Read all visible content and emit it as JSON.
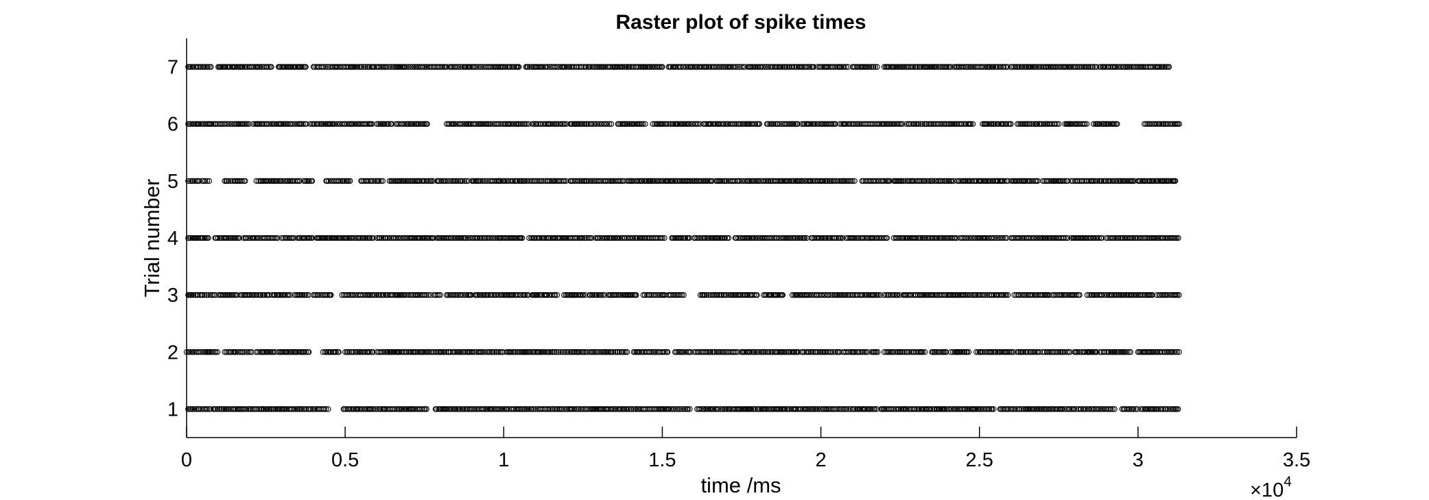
{
  "chart_data": {
    "type": "scatter",
    "title": "Raster plot of spike times",
    "xlabel": "time /ms",
    "ylabel": "Trial number",
    "xlim": [
      0,
      35000
    ],
    "ylim": [
      0.5,
      7.5
    ],
    "x_exponent_label": {
      "base": "×10",
      "exponent": "4"
    },
    "x_ticks": [
      {
        "value": 0,
        "label": "0"
      },
      {
        "value": 5000,
        "label": "0.5"
      },
      {
        "value": 10000,
        "label": "1"
      },
      {
        "value": 15000,
        "label": "1.5"
      },
      {
        "value": 20000,
        "label": "2"
      },
      {
        "value": 25000,
        "label": "2.5"
      },
      {
        "value": 30000,
        "label": "3"
      },
      {
        "value": 35000,
        "label": "3.5"
      }
    ],
    "y_ticks": [
      {
        "value": 1,
        "label": "1"
      },
      {
        "value": 2,
        "label": "2"
      },
      {
        "value": 3,
        "label": "3"
      },
      {
        "value": 4,
        "label": "4"
      },
      {
        "value": 5,
        "label": "5"
      },
      {
        "value": 6,
        "label": "6"
      },
      {
        "value": 7,
        "label": "7"
      }
    ],
    "marker": "open-circle",
    "marker_color": "#000000",
    "grid": false,
    "legend": "none",
    "approx_spike_spacing_ms": 45,
    "trials": [
      {
        "trial": 1,
        "bursts_ms": [
          [
            50,
            750
          ],
          [
            850,
            4500
          ],
          [
            4950,
            7600
          ],
          [
            7850,
            15900
          ],
          [
            16100,
            21800
          ],
          [
            21900,
            25500
          ],
          [
            25650,
            29300
          ],
          [
            29500,
            30000
          ],
          [
            30100,
            31300
          ]
        ]
      },
      {
        "trial": 2,
        "bursts_ms": [
          [
            0,
            1000
          ],
          [
            1200,
            2100
          ],
          [
            2200,
            2800
          ],
          [
            2900,
            3900
          ],
          [
            4300,
            4800
          ],
          [
            5000,
            5900
          ],
          [
            6000,
            10000
          ],
          [
            10100,
            13900
          ],
          [
            14100,
            15200
          ],
          [
            15400,
            15900
          ],
          [
            16000,
            17400
          ],
          [
            17500,
            19300
          ],
          [
            19400,
            20600
          ],
          [
            20700,
            21500
          ],
          [
            21600,
            21800
          ],
          [
            22000,
            23300
          ],
          [
            23500,
            24000
          ],
          [
            24100,
            24700
          ],
          [
            24900,
            26100
          ],
          [
            26200,
            26900
          ],
          [
            27000,
            27900
          ],
          [
            28000,
            28700
          ],
          [
            28800,
            29800
          ],
          [
            30000,
            31300
          ]
        ]
      },
      {
        "trial": 3,
        "bursts_ms": [
          [
            50,
            900
          ],
          [
            1000,
            1600
          ],
          [
            1700,
            2600
          ],
          [
            2700,
            3300
          ],
          [
            3400,
            3900
          ],
          [
            4000,
            4600
          ],
          [
            4900,
            7700
          ],
          [
            7800,
            8000
          ],
          [
            8200,
            9000
          ],
          [
            9100,
            10800
          ],
          [
            10900,
            11700
          ],
          [
            11900,
            12600
          ],
          [
            12700,
            13200
          ],
          [
            13300,
            14200
          ],
          [
            14400,
            15100
          ],
          [
            15200,
            15700
          ],
          [
            16200,
            18000
          ],
          [
            18200,
            18800
          ],
          [
            19100,
            21900
          ],
          [
            22000,
            22500
          ],
          [
            22600,
            25900
          ],
          [
            26100,
            27200
          ],
          [
            27300,
            28200
          ],
          [
            28400,
            30500
          ],
          [
            30600,
            31300
          ]
        ]
      },
      {
        "trial": 4,
        "bursts_ms": [
          [
            50,
            700
          ],
          [
            900,
            1700
          ],
          [
            1800,
            2900
          ],
          [
            3000,
            3400
          ],
          [
            3500,
            4000
          ],
          [
            4100,
            5900
          ],
          [
            6000,
            7800
          ],
          [
            7900,
            10600
          ],
          [
            10800,
            12800
          ],
          [
            12900,
            15100
          ],
          [
            15300,
            15900
          ],
          [
            16000,
            17100
          ],
          [
            17300,
            19600
          ],
          [
            19700,
            20700
          ],
          [
            20800,
            22100
          ],
          [
            22300,
            24300
          ],
          [
            24400,
            25900
          ],
          [
            26000,
            27800
          ],
          [
            27900,
            28900
          ],
          [
            29000,
            31300
          ]
        ]
      },
      {
        "trial": 5,
        "bursts_ms": [
          [
            50,
            400
          ],
          [
            500,
            750
          ],
          [
            1200,
            1900
          ],
          [
            2200,
            3600
          ],
          [
            3700,
            4000
          ],
          [
            4400,
            5200
          ],
          [
            5500,
            6200
          ],
          [
            6400,
            7800
          ],
          [
            7900,
            8900
          ],
          [
            9000,
            12000
          ],
          [
            12100,
            13800
          ],
          [
            13900,
            16600
          ],
          [
            16700,
            21100
          ],
          [
            21300,
            22200
          ],
          [
            22300,
            24200
          ],
          [
            24300,
            25900
          ],
          [
            26000,
            26900
          ],
          [
            27000,
            27800
          ],
          [
            27900,
            29900
          ],
          [
            30000,
            31200
          ]
        ]
      },
      {
        "trial": 6,
        "bursts_ms": [
          [
            50,
            2000
          ],
          [
            2100,
            3800
          ],
          [
            3900,
            5900
          ],
          [
            6000,
            6500
          ],
          [
            6600,
            7600
          ],
          [
            8200,
            10800
          ],
          [
            10900,
            12000
          ],
          [
            12100,
            13400
          ],
          [
            13600,
            14500
          ],
          [
            14700,
            16200
          ],
          [
            16300,
            18100
          ],
          [
            18300,
            19300
          ],
          [
            19400,
            20500
          ],
          [
            20600,
            22600
          ],
          [
            22700,
            24800
          ],
          [
            25100,
            26000
          ],
          [
            26200,
            27500
          ],
          [
            27700,
            28400
          ],
          [
            28600,
            29400
          ],
          [
            30200,
            31300
          ]
        ]
      },
      {
        "trial": 7,
        "bursts_ms": [
          [
            50,
            800
          ],
          [
            1000,
            2700
          ],
          [
            2900,
            3800
          ],
          [
            4000,
            8200
          ],
          [
            8300,
            10500
          ],
          [
            10700,
            15000
          ],
          [
            15200,
            17600
          ],
          [
            17700,
            19800
          ],
          [
            19900,
            20900
          ],
          [
            21000,
            21800
          ],
          [
            22000,
            24100
          ],
          [
            24200,
            25900
          ],
          [
            26000,
            28700
          ],
          [
            28800,
            31000
          ]
        ]
      }
    ]
  }
}
